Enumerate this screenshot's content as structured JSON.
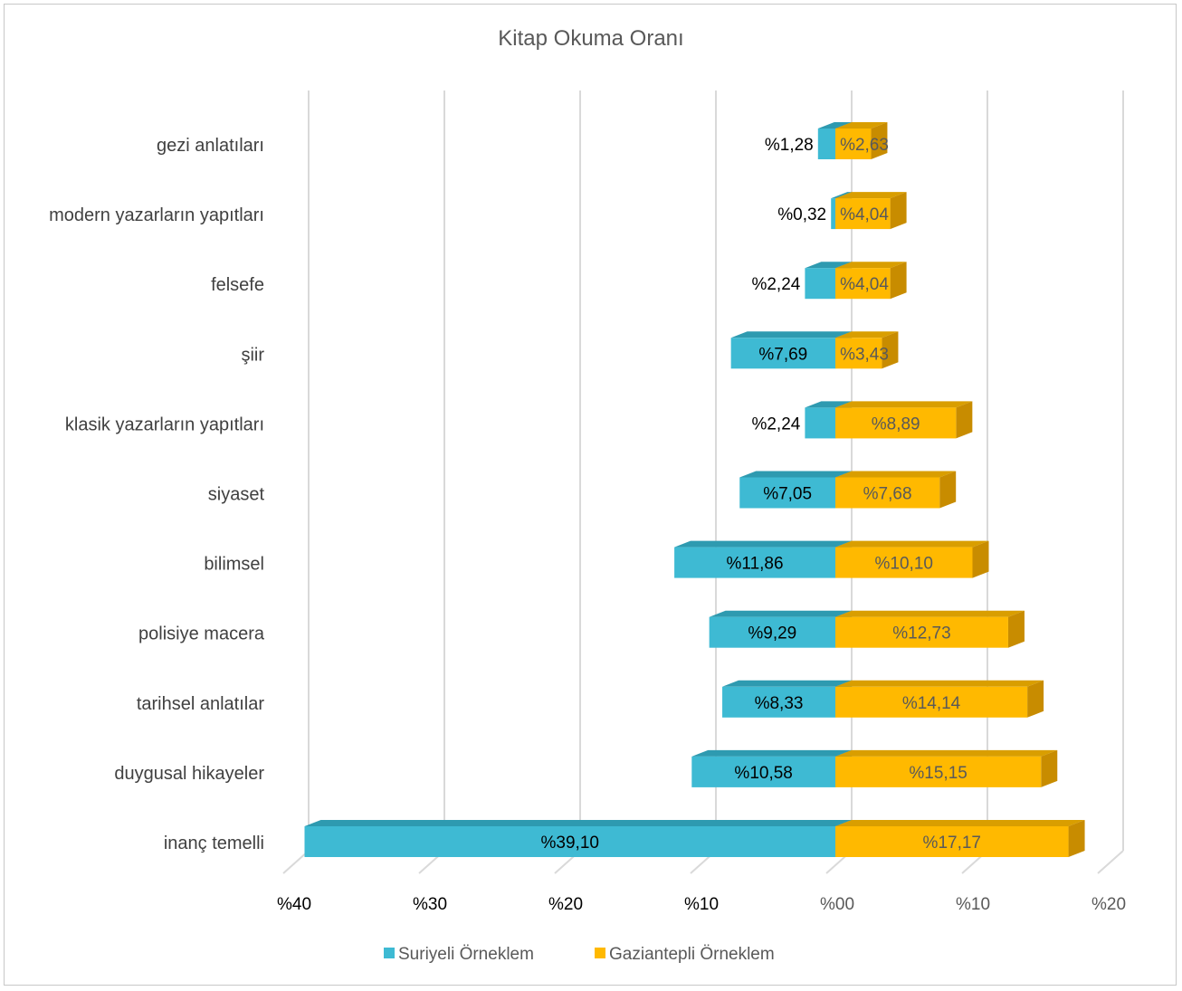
{
  "chart_data": {
    "type": "bar",
    "orientation": "horizontal-diverging",
    "title": "Kitap Okuma Oranı",
    "categories": [
      "gezi anlatıları",
      "modern yazarların yapıtları",
      "felsefe",
      "şiir",
      "klasik yazarların yapıtları",
      "siyaset",
      "bilimsel",
      "polisiye macera",
      "tarihsel anlatılar",
      "duygusal hikayeler",
      "inanç temelli"
    ],
    "series": [
      {
        "name": "Suriyeli Örneklem",
        "direction": "left",
        "color": "#3EBAD3",
        "side_color": "#2A8FA3",
        "values": [
          1.28,
          0.32,
          2.24,
          7.69,
          2.24,
          7.05,
          11.86,
          9.29,
          8.33,
          10.58,
          39.1
        ],
        "labels": [
          "%1,28",
          "%0,32",
          "%2,24",
          "%7,69",
          "%2,24",
          "%7,05",
          "%11,86",
          "%9,29",
          "%8,33",
          "%10,58",
          "%39,10"
        ]
      },
      {
        "name": "Gaziantepli Örneklem",
        "direction": "right",
        "color": "#FFB900",
        "side_color": "#C88C00",
        "values": [
          2.63,
          4.04,
          4.04,
          3.43,
          8.89,
          7.68,
          10.1,
          12.73,
          14.14,
          15.15,
          17.17
        ],
        "labels": [
          "%2,63",
          "%4,04",
          "%4,04",
          "%3,43",
          "%8,89",
          "%7,68",
          "%10,10",
          "%12,73",
          "%14,14",
          "%15,15",
          "%17,17"
        ]
      }
    ],
    "x_ticks": [
      {
        "value": -40,
        "label": "%40"
      },
      {
        "value": -30,
        "label": "%30"
      },
      {
        "value": -20,
        "label": "%20"
      },
      {
        "value": -10,
        "label": "%10"
      },
      {
        "value": 0,
        "label": "%00"
      },
      {
        "value": 10,
        "label": "%10"
      },
      {
        "value": 20,
        "label": "%20"
      }
    ],
    "xlim": [
      -40,
      20
    ],
    "grid": "vertical",
    "legend_position": "bottom"
  }
}
